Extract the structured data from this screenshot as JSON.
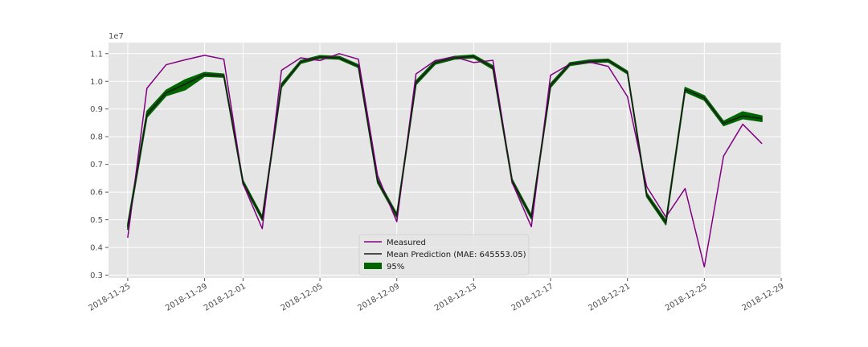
{
  "chart_data": {
    "type": "line",
    "title": "",
    "xlabel": "",
    "ylabel": "",
    "y_scale_label": "1e7",
    "y_scale": 10000000,
    "ylim": [
      0.29,
      1.14
    ],
    "yticks": [
      0.3,
      0.4,
      0.5,
      0.6,
      0.7,
      0.8,
      0.9,
      1.0,
      1.1
    ],
    "ytick_labels": [
      "0.3",
      "0.4",
      "0.5",
      "0.6",
      "0.7",
      "0.8",
      "0.9",
      "1.0",
      "1.1"
    ],
    "xlim": [
      "2018-11-24",
      "2018-12-29"
    ],
    "xticks": [
      "2018-11-25",
      "2018-11-29",
      "2018-12-01",
      "2018-12-05",
      "2018-12-09",
      "2018-12-13",
      "2018-12-17",
      "2018-12-21",
      "2018-12-25",
      "2018-12-29"
    ],
    "grid": true,
    "legend_position": "bottom-center",
    "x": [
      "2018-11-25",
      "2018-11-26",
      "2018-11-27",
      "2018-11-28",
      "2018-11-29",
      "2018-11-30",
      "2018-12-01",
      "2018-12-02",
      "2018-12-03",
      "2018-12-04",
      "2018-12-05",
      "2018-12-06",
      "2018-12-07",
      "2018-12-08",
      "2018-12-09",
      "2018-12-10",
      "2018-12-11",
      "2018-12-12",
      "2018-12-13",
      "2018-12-14",
      "2018-12-15",
      "2018-12-16",
      "2018-12-17",
      "2018-12-18",
      "2018-12-19",
      "2018-12-20",
      "2018-12-21",
      "2018-12-22",
      "2018-12-23",
      "2018-12-24",
      "2018-12-25",
      "2018-12-26",
      "2018-12-27",
      "2018-12-28"
    ],
    "series": [
      {
        "name": "Measured",
        "color": "#800080",
        "values": [
          0.435,
          0.975,
          1.06,
          1.078,
          1.094,
          1.08,
          0.63,
          0.468,
          1.04,
          1.085,
          1.075,
          1.1,
          1.08,
          0.66,
          0.493,
          1.027,
          1.075,
          1.088,
          1.068,
          1.076,
          0.635,
          0.475,
          1.022,
          1.062,
          1.07,
          1.054,
          0.945,
          0.62,
          0.51,
          0.613,
          0.33,
          0.73,
          0.845,
          0.775
        ]
      },
      {
        "name": "Mean Prediction (MAE: 645553.05)",
        "color": "#1a1a1a",
        "values": [
          0.475,
          0.88,
          0.958,
          0.99,
          1.025,
          1.02,
          0.635,
          0.505,
          0.985,
          1.07,
          1.088,
          1.085,
          1.055,
          0.64,
          0.515,
          0.995,
          1.068,
          1.085,
          1.09,
          1.05,
          0.64,
          0.51,
          0.985,
          1.062,
          1.072,
          1.075,
          1.032,
          0.59,
          0.49,
          0.97,
          0.94,
          0.848,
          0.875,
          0.865
        ]
      }
    ],
    "band": {
      "name": "95%",
      "color": "#006400",
      "lower": [
        0.465,
        0.87,
        0.948,
        0.97,
        1.018,
        1.015,
        0.628,
        0.498,
        0.978,
        1.065,
        1.083,
        1.08,
        1.05,
        0.633,
        0.508,
        0.988,
        1.062,
        1.08,
        1.085,
        1.044,
        0.633,
        0.503,
        0.978,
        1.057,
        1.067,
        1.07,
        1.027,
        0.583,
        0.482,
        0.962,
        0.932,
        0.84,
        0.865,
        0.855
      ],
      "upper": [
        0.485,
        0.892,
        0.968,
        1.006,
        1.032,
        1.026,
        0.642,
        0.512,
        0.992,
        1.075,
        1.093,
        1.09,
        1.06,
        0.647,
        0.522,
        1.002,
        1.074,
        1.09,
        1.095,
        1.056,
        0.647,
        0.517,
        0.992,
        1.067,
        1.077,
        1.08,
        1.037,
        0.597,
        0.498,
        0.978,
        0.948,
        0.856,
        0.89,
        0.875
      ]
    }
  }
}
